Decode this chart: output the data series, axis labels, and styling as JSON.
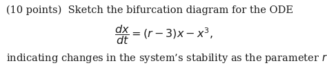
{
  "line1": "(10 points)  Sketch the bifurcation diagram for the ODE",
  "equation": "$\\dfrac{dx}{dt} = (r - 3)x - x^3,$",
  "line3": "indicating changes in the system’s stability as the parameter $r$ varies.",
  "fontsize_body": 10.5,
  "fontsize_eq": 11.5,
  "background_color": "#ffffff",
  "text_color": "#1a1a1a",
  "fig_width": 4.74,
  "fig_height": 1.02,
  "dpi": 100
}
